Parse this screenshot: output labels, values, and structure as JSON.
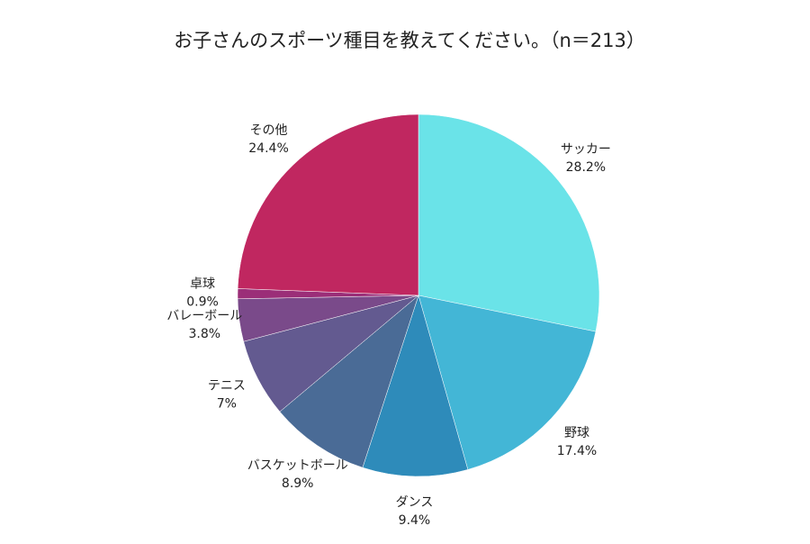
{
  "chart_data": {
    "type": "pie",
    "title": "お子さんのスポーツ種目を教えてください。（n＝213）",
    "categories": [
      "サッカー",
      "野球",
      "ダンス",
      "バスケットボール",
      "テニス",
      "バレーボール",
      "卓球",
      "その他"
    ],
    "values": [
      28.2,
      17.4,
      9.4,
      8.9,
      7,
      3.8,
      0.9,
      24.4
    ],
    "value_labels": [
      "28.2%",
      "17.4%",
      "9.4%",
      "8.9%",
      "7%",
      "3.8%",
      "0.9%",
      "24.4%"
    ],
    "colors": [
      "#6ae3e8",
      "#43b6d6",
      "#2e8bba",
      "#4a6b96",
      "#635a90",
      "#7a4a8a",
      "#9b2e78",
      "#c02760"
    ]
  }
}
